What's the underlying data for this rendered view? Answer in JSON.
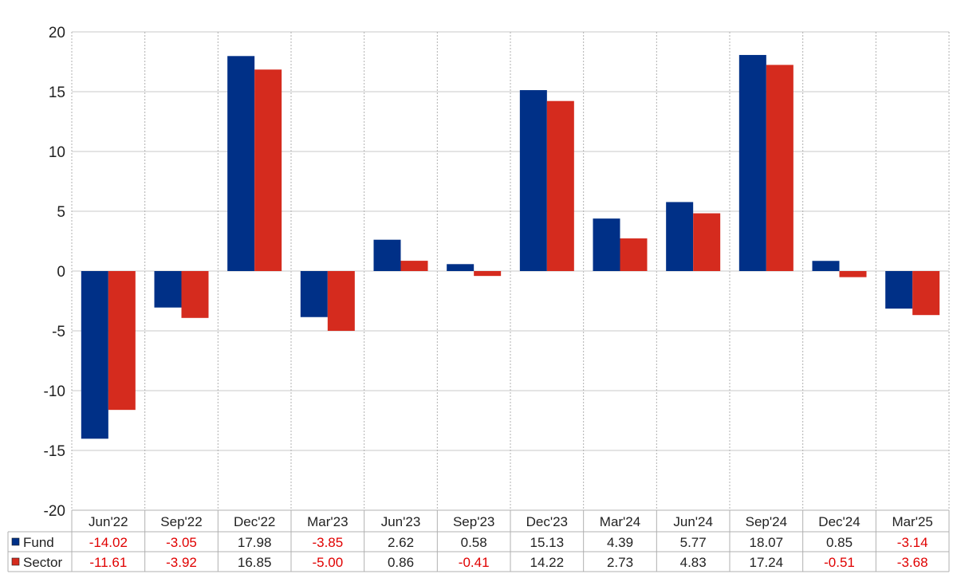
{
  "chart_data": {
    "type": "bar",
    "title": "",
    "xlabel": "",
    "ylabel": "",
    "ylim": [
      -20,
      20
    ],
    "yticks": [
      20,
      15,
      10,
      5,
      0,
      -5,
      -10,
      -15,
      -20
    ],
    "ytick_labels": [
      "20",
      "15",
      "10",
      "5",
      "0",
      "-5",
      "-10",
      "-15",
      "-20"
    ],
    "grid": true,
    "legend_placement": "bottom-left (in data table)",
    "categories": [
      "Jun'22",
      "Sep'22",
      "Dec'22",
      "Mar'23",
      "Jun'23",
      "Sep'23",
      "Dec'23",
      "Mar'24",
      "Jun'24",
      "Sep'24",
      "Dec'24",
      "Mar'25"
    ],
    "series": [
      {
        "name": "Fund",
        "color": "#003087",
        "values": [
          -14.02,
          -3.05,
          17.98,
          -3.85,
          2.62,
          0.58,
          15.13,
          4.39,
          5.77,
          18.07,
          0.85,
          -3.14
        ],
        "value_labels": [
          "-14.02",
          "-3.05",
          "17.98",
          "-3.85",
          "2.62",
          "0.58",
          "15.13",
          "4.39",
          "5.77",
          "18.07",
          "0.85",
          "-3.14"
        ]
      },
      {
        "name": "Sector",
        "color": "#d52b1e",
        "values": [
          -11.61,
          -3.92,
          16.85,
          -5.0,
          0.86,
          -0.41,
          14.22,
          2.73,
          4.83,
          17.24,
          -0.51,
          -3.68
        ],
        "value_labels": [
          "-11.61",
          "-3.92",
          "16.85",
          "-5.00",
          "0.86",
          "-0.41",
          "14.22",
          "2.73",
          "4.83",
          "17.24",
          "-0.51",
          "-3.68"
        ]
      }
    ],
    "negative_value_color": "#e00000",
    "positive_value_color": "#222222"
  }
}
